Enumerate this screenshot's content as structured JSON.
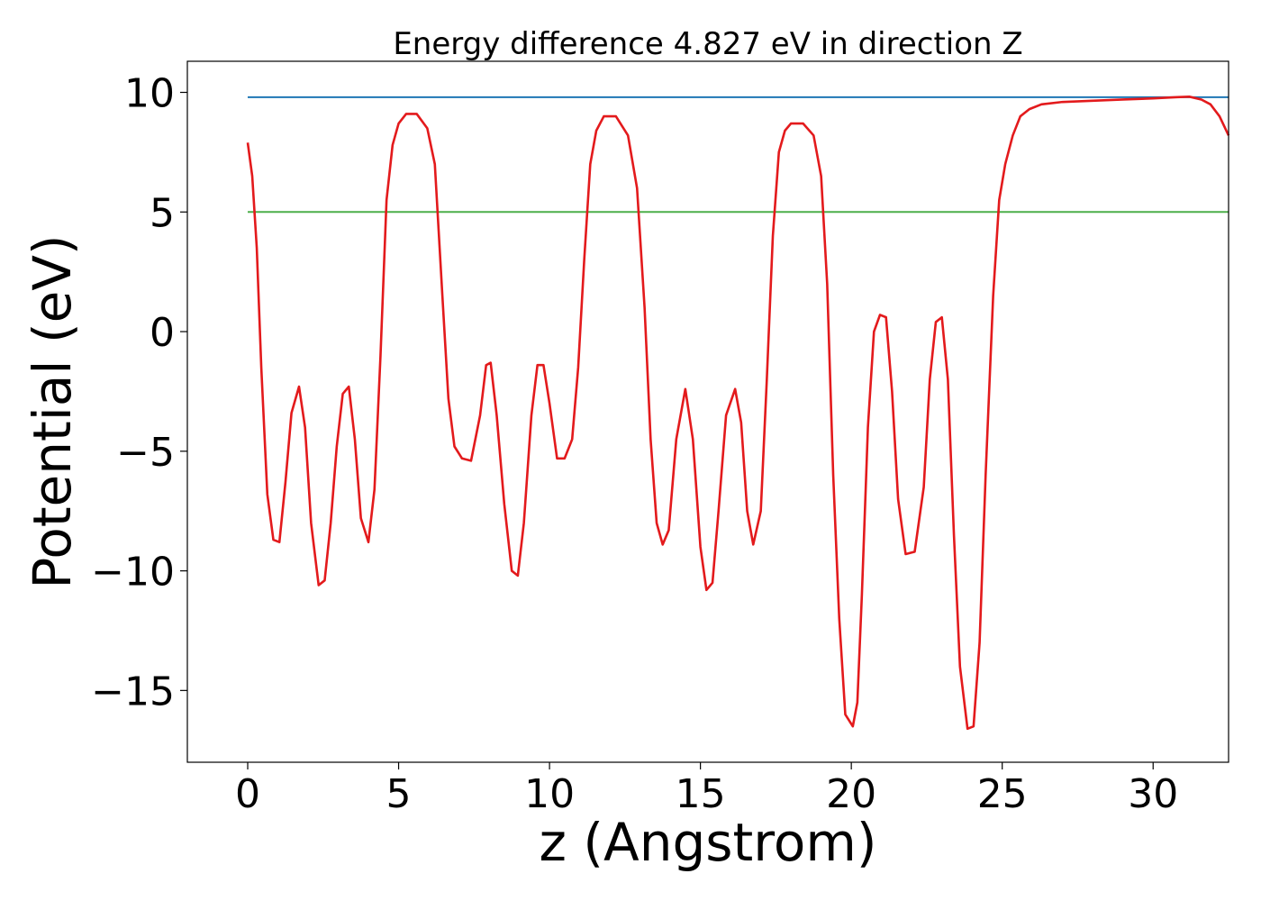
{
  "chart_data": {
    "type": "line",
    "title": "Energy difference 4.827 eV in direction Z",
    "xlabel": "z (Angstrom)",
    "ylabel": "Potential (eV)",
    "xlim": [
      -2,
      32.5
    ],
    "ylim": [
      -18.0,
      11.3
    ],
    "xticks": [
      0,
      5,
      10,
      15,
      20,
      25,
      30
    ],
    "yticks": [
      -15,
      -10,
      -5,
      0,
      5,
      10
    ],
    "grid": false,
    "colors": {
      "potential": "#e31a1c",
      "vacuum_level": "#1f77b4",
      "fermi_level": "#4daf4a"
    },
    "series": [
      {
        "key": "vacuum_level",
        "x": [
          0.0,
          32.5
        ],
        "y": [
          9.8,
          9.8
        ]
      },
      {
        "key": "fermi_level",
        "x": [
          0.0,
          32.5
        ],
        "y": [
          5.0,
          5.0
        ]
      },
      {
        "key": "potential",
        "x": [
          0.0,
          0.15,
          0.3,
          0.45,
          0.65,
          0.85,
          1.05,
          1.25,
          1.45,
          1.7,
          1.9,
          2.1,
          2.35,
          2.55,
          2.75,
          2.95,
          3.15,
          3.35,
          3.55,
          3.75,
          4.0,
          4.2,
          4.4,
          4.6,
          4.8,
          5.0,
          5.25,
          5.6,
          5.95,
          6.2,
          6.45,
          6.65,
          6.85,
          7.1,
          7.4,
          7.7,
          7.9,
          8.05,
          8.25,
          8.5,
          8.75,
          8.95,
          9.15,
          9.4,
          9.6,
          9.8,
          10.0,
          10.25,
          10.5,
          10.75,
          10.95,
          11.15,
          11.35,
          11.55,
          11.8,
          12.2,
          12.6,
          12.9,
          13.15,
          13.35,
          13.55,
          13.75,
          13.95,
          14.2,
          14.5,
          14.75,
          15.0,
          15.2,
          15.4,
          15.6,
          15.85,
          16.15,
          16.35,
          16.55,
          16.75,
          17.0,
          17.2,
          17.4,
          17.6,
          17.8,
          18.0,
          18.4,
          18.75,
          19.0,
          19.2,
          19.4,
          19.6,
          19.8,
          20.05,
          20.2,
          20.35,
          20.55,
          20.75,
          20.95,
          21.15,
          21.35,
          21.55,
          21.8,
          22.1,
          22.4,
          22.6,
          22.8,
          23.0,
          23.2,
          23.4,
          23.6,
          23.85,
          24.05,
          24.25,
          24.45,
          24.7,
          24.9,
          25.1,
          25.35,
          25.6,
          25.9,
          26.3,
          27.0,
          28.0,
          29.0,
          30.0,
          30.8,
          31.2,
          31.6,
          31.9,
          32.2,
          32.5
        ],
        "y": [
          7.9,
          6.5,
          3.5,
          -1.5,
          -6.8,
          -8.7,
          -8.8,
          -6.3,
          -3.4,
          -2.3,
          -4.0,
          -8.0,
          -10.6,
          -10.4,
          -8.0,
          -4.8,
          -2.6,
          -2.3,
          -4.5,
          -7.8,
          -8.8,
          -6.6,
          -1.0,
          5.5,
          7.8,
          8.7,
          9.1,
          9.1,
          8.5,
          7.0,
          1.5,
          -2.8,
          -4.8,
          -5.3,
          -5.4,
          -3.5,
          -1.4,
          -1.3,
          -3.5,
          -7.2,
          -10.0,
          -10.2,
          -8.0,
          -3.5,
          -1.4,
          -1.4,
          -3.0,
          -5.3,
          -5.3,
          -4.5,
          -1.5,
          3.0,
          7.0,
          8.4,
          9.0,
          9.0,
          8.2,
          6.0,
          1.0,
          -4.5,
          -8.0,
          -8.9,
          -8.3,
          -4.5,
          -2.4,
          -4.5,
          -9.0,
          -10.8,
          -10.5,
          -7.5,
          -3.5,
          -2.4,
          -3.8,
          -7.5,
          -8.9,
          -7.5,
          -2.0,
          4.0,
          7.5,
          8.4,
          8.7,
          8.7,
          8.2,
          6.5,
          2.0,
          -6.0,
          -12.0,
          -16.0,
          -16.5,
          -15.5,
          -11.0,
          -4.0,
          0.0,
          0.7,
          0.6,
          -2.5,
          -7.0,
          -9.3,
          -9.2,
          -6.5,
          -2.0,
          0.4,
          0.6,
          -2.0,
          -8.5,
          -14.0,
          -16.6,
          -16.5,
          -13.0,
          -6.0,
          1.5,
          5.5,
          7.0,
          8.2,
          9.0,
          9.3,
          9.5,
          9.6,
          9.65,
          9.7,
          9.75,
          9.8,
          9.82,
          9.7,
          9.5,
          9.0,
          8.2
        ]
      }
    ]
  }
}
